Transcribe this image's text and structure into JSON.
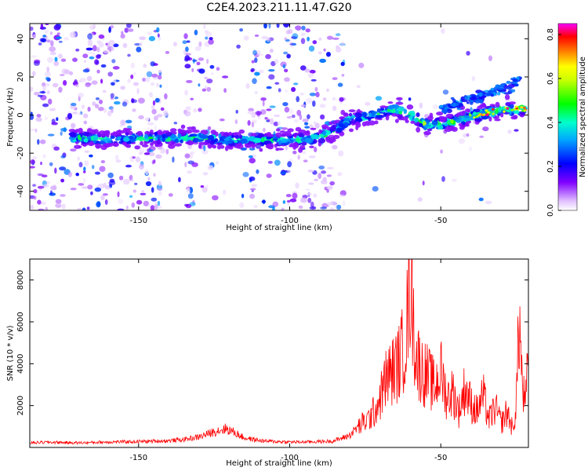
{
  "figure": {
    "title": "C2E4.2023.211.11.47.G20"
  },
  "chart_data": [
    {
      "type": "heatmap",
      "name": "spectrogram",
      "xlabel": "Height of straight line (km)",
      "ylabel": "Frequency (Hz)",
      "xlim": [
        -186,
        -21
      ],
      "ylim": [
        -50,
        48
      ],
      "xticks": [
        -150,
        -100,
        -50
      ],
      "yticks": [
        -40,
        -20,
        0,
        20,
        40
      ],
      "grid": false,
      "colorbar": {
        "label": "Normalized spectral amplitude",
        "range": [
          0,
          0.85
        ],
        "ticks": [
          0.0,
          0.2,
          0.4,
          0.6,
          0.8
        ],
        "colors": [
          "#ffffff",
          "#8000ff",
          "#0000ff",
          "#00ffff",
          "#00ff00",
          "#ffff00",
          "#ff8000",
          "#ff0000",
          "#ff00ff"
        ]
      },
      "ridge": [
        {
          "x": -170,
          "y": -12
        },
        {
          "x": -160,
          "y": -13
        },
        {
          "x": -150,
          "y": -12
        },
        {
          "x": -140,
          "y": -12
        },
        {
          "x": -130,
          "y": -12
        },
        {
          "x": -120,
          "y": -13
        },
        {
          "x": -110,
          "y": -13
        },
        {
          "x": -100,
          "y": -13
        },
        {
          "x": -90,
          "y": -12
        },
        {
          "x": -85,
          "y": -8
        },
        {
          "x": -80,
          "y": -2
        },
        {
          "x": -75,
          "y": -1
        },
        {
          "x": -70,
          "y": 1
        },
        {
          "x": -65,
          "y": 3
        },
        {
          "x": -60,
          "y": 0
        },
        {
          "x": -55,
          "y": -5
        },
        {
          "x": -50,
          "y": -5
        },
        {
          "x": -45,
          "y": -3
        },
        {
          "x": -40,
          "y": -1
        },
        {
          "x": -35,
          "y": 1
        },
        {
          "x": -30,
          "y": 3
        },
        {
          "x": -25,
          "y": 3
        },
        {
          "x": -22,
          "y": 3
        }
      ],
      "upper_branch": [
        {
          "x": -50,
          "y": 3
        },
        {
          "x": -40,
          "y": 8
        },
        {
          "x": -35,
          "y": 11
        },
        {
          "x": -30,
          "y": 14
        },
        {
          "x": -25,
          "y": 17
        }
      ]
    },
    {
      "type": "line",
      "name": "snr",
      "xlabel": "Height of straight line (km)",
      "ylabel": "SNR (10 * v/v)",
      "xlim": [
        -186,
        -21
      ],
      "ylim": [
        0,
        9000
      ],
      "xticks": [
        -150,
        -100,
        -50
      ],
      "yticks": [
        2000,
        4000,
        6000,
        8000
      ],
      "grid": false,
      "color": "#ff0000",
      "series": [
        {
          "x": [
            -186,
            -180,
            -170,
            -160,
            -150,
            -145,
            -140,
            -135,
            -130,
            -127,
            -124,
            -121,
            -118,
            -115,
            -112,
            -108,
            -104,
            -100,
            -95,
            -90,
            -86,
            -83,
            -80,
            -78,
            -76,
            -74,
            -72,
            -70,
            -68,
            -66,
            -64,
            -62,
            -61,
            -60,
            -59,
            -58,
            -56,
            -54,
            -52,
            -50,
            -48,
            -46,
            -44,
            -42,
            -40,
            -38,
            -36,
            -34,
            -32,
            -30,
            -28,
            -26,
            -25,
            -24,
            -23,
            -22,
            -21
          ],
          "y": [
            220,
            250,
            220,
            260,
            280,
            300,
            320,
            380,
            500,
            650,
            800,
            900,
            700,
            450,
            380,
            300,
            280,
            260,
            260,
            280,
            300,
            420,
            600,
            900,
            1200,
            1400,
            1800,
            2500,
            3500,
            3800,
            4200,
            5200,
            6500,
            8800,
            6000,
            4500,
            3800,
            3500,
            3000,
            3800,
            2500,
            2800,
            1800,
            3000,
            2200,
            1800,
            2600,
            1400,
            2000,
            1200,
            1800,
            800,
            2500,
            6500,
            3000,
            2000,
            4500
          ]
        }
      ]
    }
  ]
}
